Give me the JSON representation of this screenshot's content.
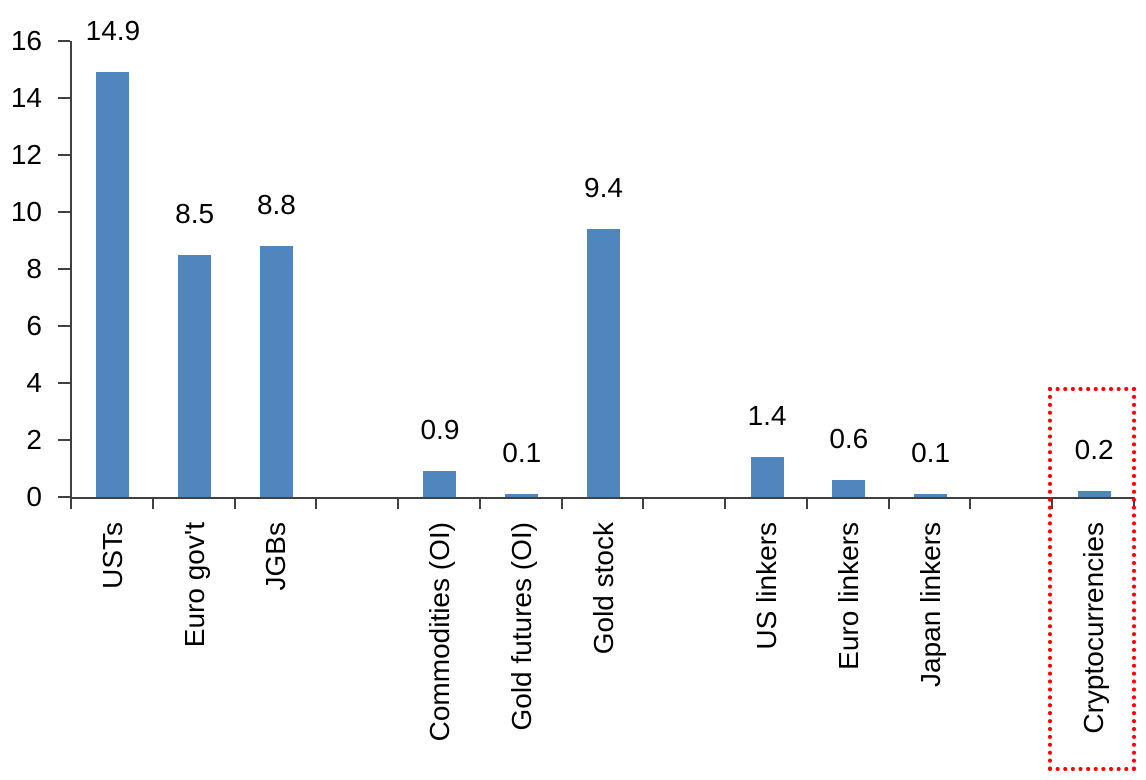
{
  "chart_data": {
    "type": "bar",
    "title": "",
    "xlabel": "",
    "ylabel": "",
    "categories": [
      "USTs",
      "Euro gov't",
      "JGBs",
      "Commodities (OI)",
      "Gold futures (OI)",
      "Gold stock",
      "US linkers",
      "Euro linkers",
      "Japan linkers",
      "Cryptocurrencies"
    ],
    "values": [
      14.9,
      8.5,
      8.8,
      0.9,
      0.1,
      9.4,
      1.4,
      0.6,
      0.1,
      0.2
    ],
    "data_labels": [
      "14.9",
      "8.5",
      "8.8",
      "0.9",
      "0.1",
      "9.4",
      "1.4",
      "0.6",
      "0.1",
      "0.2"
    ],
    "slot_indices": [
      0,
      1,
      2,
      4,
      5,
      6,
      8,
      9,
      10,
      12
    ],
    "total_slots": 13,
    "ylim": [
      0,
      16
    ],
    "yticks": [
      0,
      2,
      4,
      6,
      8,
      10,
      12,
      14,
      16
    ],
    "grid": false,
    "legend": false,
    "bar_color": "#4E86BD",
    "axis_color": "#404040",
    "label_color": "#000000",
    "highlight": {
      "target_category": "Cryptocurrencies",
      "border_color": "#FF0000",
      "border_style": "dotted"
    }
  }
}
